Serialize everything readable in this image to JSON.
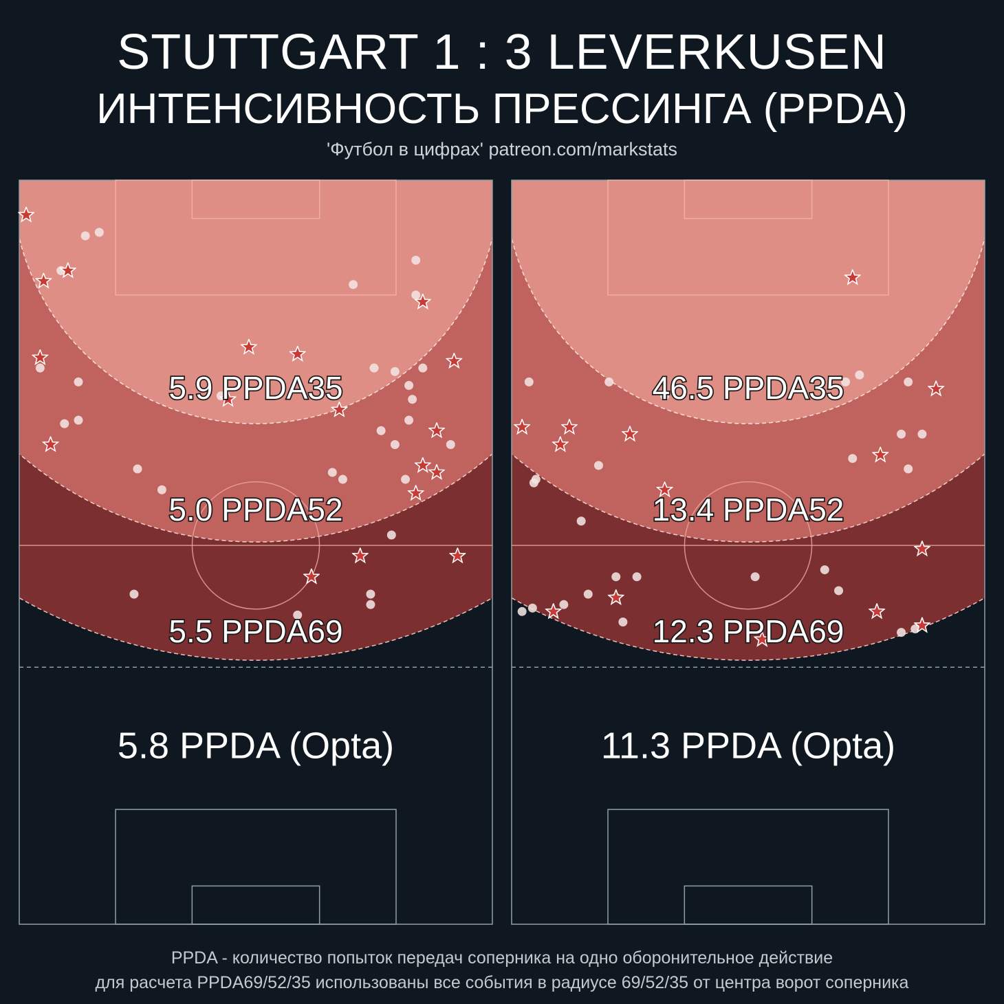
{
  "header": {
    "title": "STUTTGART  1 : 3  LEVERKUSEN",
    "subtitle": "ИНТЕНСИВНОСТЬ ПРЕССИНГА (PPDA)",
    "credit": "'Футбол в цифрах' patreon.com/markstats"
  },
  "footer": {
    "line1": "PPDA - количество попыток передач соперника на одно оборонительное действие",
    "line2": "для расчета PPDA69/52/35 использованы все события в радиусе 69/52/35 от центра ворот соперника"
  },
  "colors": {
    "background": "#0f1820",
    "zone35": "#df8e86",
    "zone52": "#c0625e",
    "zone69": "#7b2f30",
    "star": "#c83a36",
    "circle": "#f3e4e2",
    "pitch_line": "#8fa0a6"
  },
  "chart_data": [
    {
      "type": "scatter",
      "panel": "left",
      "ppda_labels": [
        "5.9 PPDA35",
        "5.0 PPDA52",
        "5.5 PPDA69"
      ],
      "opta_label": "5.8 PPDA (Opta)",
      "stars": [
        [
          1,
          5
        ],
        [
          3.5,
          14.5
        ],
        [
          7,
          13
        ],
        [
          3,
          25.5
        ],
        [
          4.5,
          38
        ],
        [
          33,
          24
        ],
        [
          40,
          25
        ],
        [
          30,
          31.5
        ],
        [
          46,
          33
        ],
        [
          58,
          17.5
        ],
        [
          62.5,
          26
        ],
        [
          60,
          36
        ],
        [
          58,
          41
        ],
        [
          60,
          42
        ],
        [
          57,
          45
        ],
        [
          49,
          54
        ],
        [
          63,
          54
        ],
        [
          42,
          57
        ]
      ],
      "circles": [
        [
          9.5,
          8
        ],
        [
          11.5,
          7.5
        ],
        [
          6,
          13
        ],
        [
          57,
          11.5
        ],
        [
          48,
          15
        ],
        [
          57,
          16.5
        ],
        [
          3,
          27
        ],
        [
          8.5,
          29
        ],
        [
          29,
          31
        ],
        [
          51,
          27
        ],
        [
          54,
          27.5
        ],
        [
          58,
          27
        ],
        [
          56,
          29.5
        ],
        [
          56.5,
          31.5
        ],
        [
          56,
          34.5
        ],
        [
          8.5,
          34.5
        ],
        [
          6.5,
          35
        ],
        [
          52,
          36
        ],
        [
          54,
          38
        ],
        [
          62,
          38
        ],
        [
          17,
          41.5
        ],
        [
          45,
          42
        ],
        [
          46.5,
          43
        ],
        [
          20.5,
          44.5
        ],
        [
          55.5,
          43
        ],
        [
          53.5,
          51
        ],
        [
          16.5,
          59.5
        ],
        [
          50.5,
          59.5
        ],
        [
          40,
          62.5
        ],
        [
          50.5,
          61
        ]
      ]
    },
    {
      "type": "scatter",
      "panel": "right",
      "ppda_labels": [
        "46.5 PPDA35",
        "13.4 PPDA52",
        "12.3 PPDA69"
      ],
      "opta_label": "11.3 PPDA (Opta)",
      "stars": [
        [
          49,
          14
        ],
        [
          61,
          30
        ],
        [
          1.5,
          35.5
        ],
        [
          8.3,
          35.5
        ],
        [
          7,
          38
        ],
        [
          17,
          36.5
        ],
        [
          53,
          39.5
        ],
        [
          59,
          53
        ],
        [
          15,
          60
        ],
        [
          6,
          62
        ],
        [
          52.5,
          62
        ],
        [
          59,
          64
        ],
        [
          36,
          66
        ],
        [
          22,
          44.5
        ]
      ],
      "circles": [
        [
          2.5,
          29
        ],
        [
          14,
          29
        ],
        [
          22,
          31
        ],
        [
          48,
          29
        ],
        [
          50,
          28
        ],
        [
          57,
          29
        ],
        [
          56,
          36.5
        ],
        [
          59,
          36.5
        ],
        [
          49,
          40
        ],
        [
          12.5,
          41
        ],
        [
          57,
          41.5
        ],
        [
          3.2,
          43.5
        ],
        [
          3.5,
          43
        ],
        [
          10,
          49
        ],
        [
          15,
          57
        ],
        [
          15,
          60
        ],
        [
          18,
          57
        ],
        [
          35,
          57
        ],
        [
          45,
          56
        ],
        [
          47,
          59
        ],
        [
          11,
          59.5
        ],
        [
          7.5,
          61
        ],
        [
          1.5,
          62
        ],
        [
          3,
          61.5
        ],
        [
          16,
          63.5
        ],
        [
          56,
          65
        ],
        [
          58,
          64.5
        ]
      ]
    }
  ]
}
